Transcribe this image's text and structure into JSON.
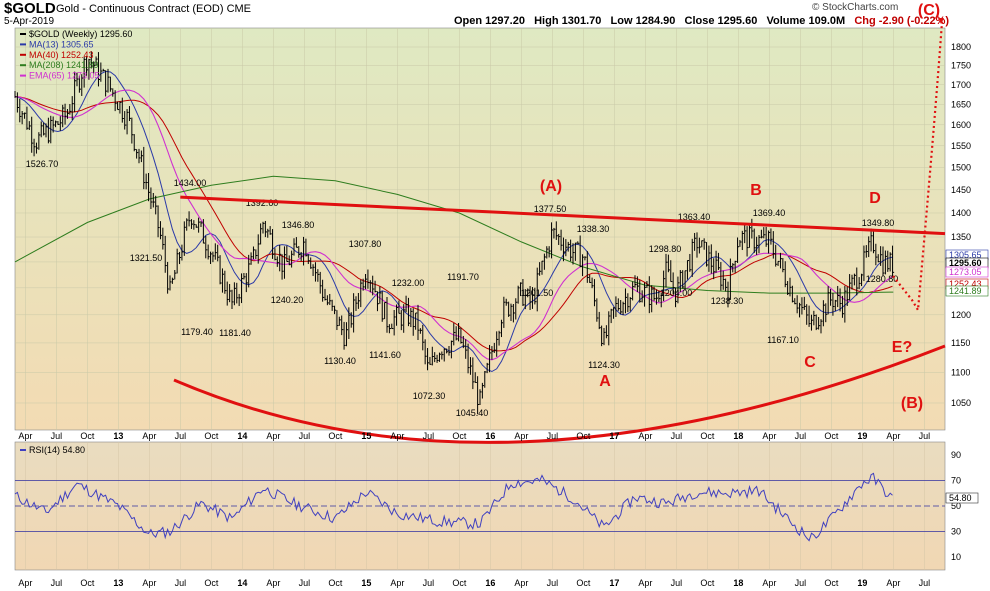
{
  "header": {
    "ticker": "$GOLD",
    "subtitle": "Gold - Continuous Contract (EOD)  CME",
    "date": "5-Apr-2019",
    "brand": "© StockCharts.com",
    "ohlc": {
      "open": "Open 1297.20",
      "high": "High 1301.70",
      "low": "Low 1284.90",
      "close": "Close 1295.60",
      "volume": "Volume 109.0M",
      "chg": "Chg -2.90 (-0.22%)"
    }
  },
  "colors": {
    "price": "#000000",
    "ma13": "#2b3aa8",
    "ma40": "#c00000",
    "ma208": "#2e7d1e",
    "ema65": "#d030d0",
    "annot": "#e01010",
    "rsi": "#4040c0"
  },
  "chart_data": [
    {
      "type": "line",
      "title": "$GOLD (Weekly) 1295.60",
      "y_scale": "log",
      "ylim": [
        1000,
        1900
      ],
      "y_ticks": [
        1050,
        1100,
        1150,
        1200,
        1250,
        1300,
        1350,
        1400,
        1450,
        1500,
        1550,
        1600,
        1650,
        1700,
        1750,
        1800
      ],
      "x_ticks": [
        "Apr",
        "Jul",
        "Oct",
        "13",
        "Apr",
        "Jul",
        "Oct",
        "14",
        "Apr",
        "Jul",
        "Oct",
        "15",
        "Apr",
        "Jul",
        "Oct",
        "16",
        "Apr",
        "Jul",
        "Oct",
        "17",
        "Apr",
        "Jul",
        "Oct",
        "18",
        "Apr",
        "Jul",
        "Oct",
        "19",
        "Apr",
        "Jul"
      ],
      "x_range": [
        "2012-03",
        "2019-09"
      ],
      "legend": [
        {
          "name": "$GOLD (Weekly) 1295.60",
          "color": "#000000"
        },
        {
          "name": "MA(13) 1305.65",
          "color": "#2b3aa8"
        },
        {
          "name": "MA(40) 1252.43",
          "color": "#c00000"
        },
        {
          "name": "MA(208) 1241.89",
          "color": "#2e7d1e"
        },
        {
          "name": "EMA(65) 1273.05",
          "color": "#d030d0"
        }
      ],
      "legend_position": "top-left",
      "series": [
        {
          "name": "$GOLD (Weekly) 1295.60",
          "x": [
            "2012-03",
            "2012-05",
            "2012-07",
            "2012-08",
            "2012-10",
            "2012-12",
            "2013-02",
            "2013-04",
            "2013-05",
            "2013-06",
            "2013-08",
            "2013-10",
            "2013-12",
            "2014-02",
            "2014-03",
            "2014-05",
            "2014-07",
            "2014-09",
            "2014-11",
            "2015-01",
            "2015-03",
            "2015-05",
            "2015-06",
            "2015-07",
            "2015-08",
            "2015-10",
            "2015-12",
            "2016-02",
            "2016-04",
            "2016-05",
            "2016-07",
            "2016-09",
            "2016-10",
            "2016-12",
            "2017-01",
            "2017-03",
            "2017-05",
            "2017-06",
            "2017-07",
            "2017-09",
            "2017-12",
            "2018-01",
            "2018-04",
            "2018-06",
            "2018-08",
            "2018-10",
            "2018-11",
            "2019-01",
            "2019-02",
            "2019-03",
            "2019-04"
          ],
          "y": [
            1670,
            1560,
            1600,
            1625,
            1775,
            1700,
            1610,
            1440,
            1360,
            1240,
            1400,
            1320,
            1220,
            1300,
            1380,
            1290,
            1340,
            1230,
            1160,
            1290,
            1190,
            1200,
            1180,
            1100,
            1140,
            1160,
            1050,
            1200,
            1240,
            1220,
            1360,
            1320,
            1310,
            1150,
            1210,
            1250,
            1230,
            1280,
            1240,
            1340,
            1250,
            1350,
            1340,
            1250,
            1180,
            1230,
            1220,
            1290,
            1340,
            1300,
            1295
          ]
        },
        {
          "name": "MA(208)",
          "x": [
            "2012-03",
            "2012-10",
            "2013-04",
            "2013-10",
            "2014-04",
            "2014-10",
            "2015-04",
            "2015-10",
            "2016-04",
            "2016-10",
            "2017-04",
            "2017-10",
            "2018-04",
            "2018-10",
            "2019-04"
          ],
          "y": [
            1300,
            1380,
            1430,
            1460,
            1480,
            1470,
            1440,
            1400,
            1340,
            1290,
            1255,
            1245,
            1240,
            1240,
            1242
          ]
        }
      ],
      "annotations": [
        {
          "text": "1526.70"
        },
        {
          "text": "1434.00"
        },
        {
          "text": "1392.60"
        },
        {
          "text": "1346.80"
        },
        {
          "text": "1321.50"
        },
        {
          "text": "1179.40"
        },
        {
          "text": "1181.40"
        },
        {
          "text": "1240.20"
        },
        {
          "text": "1307.80"
        },
        {
          "text": "1232.00"
        },
        {
          "text": "1130.40"
        },
        {
          "text": "1141.60"
        },
        {
          "text": "1191.70"
        },
        {
          "text": "1072.30"
        },
        {
          "text": "1045.40"
        },
        {
          "text": "1377.50"
        },
        {
          "text": "1338.30"
        },
        {
          "text": "1201.50"
        },
        {
          "text": "1124.30"
        },
        {
          "text": "1298.80"
        },
        {
          "text": "1204.00"
        },
        {
          "text": "1363.40"
        },
        {
          "text": "1238.30"
        },
        {
          "text": "1369.40"
        },
        {
          "text": "1167.10"
        },
        {
          "text": "1349.80"
        },
        {
          "text": "1280.80"
        }
      ],
      "wave_labels": [
        "(A)",
        "A",
        "B",
        "C",
        "D",
        "E?",
        "(B)",
        "(C)"
      ],
      "right_value_tags": [
        "1305.65",
        "1295.60",
        "1273.05",
        "1252.43",
        "1241.89"
      ]
    },
    {
      "type": "line",
      "title": "RSI(14) 54.80",
      "ylim": [
        0,
        100
      ],
      "y_ticks": [
        10,
        30,
        50,
        70,
        90
      ],
      "value_tag": "54.80",
      "series": [
        {
          "name": "RSI(14) 54.80",
          "x": [
            "2012-03",
            "2012-06",
            "2012-09",
            "2013-01",
            "2013-04",
            "2013-06",
            "2013-09",
            "2013-12",
            "2014-03",
            "2014-06",
            "2014-10",
            "2015-01",
            "2015-04",
            "2015-08",
            "2015-12",
            "2016-03",
            "2016-06",
            "2016-09",
            "2016-12",
            "2017-03",
            "2017-06",
            "2017-09",
            "2017-12",
            "2018-03",
            "2018-06",
            "2018-08",
            "2018-10",
            "2019-01",
            "2019-02",
            "2019-04"
          ],
          "y": [
            58,
            45,
            67,
            50,
            28,
            30,
            52,
            40,
            64,
            52,
            40,
            61,
            44,
            38,
            36,
            68,
            70,
            56,
            33,
            57,
            52,
            61,
            60,
            62,
            38,
            24,
            40,
            68,
            72,
            55
          ]
        }
      ]
    }
  ]
}
